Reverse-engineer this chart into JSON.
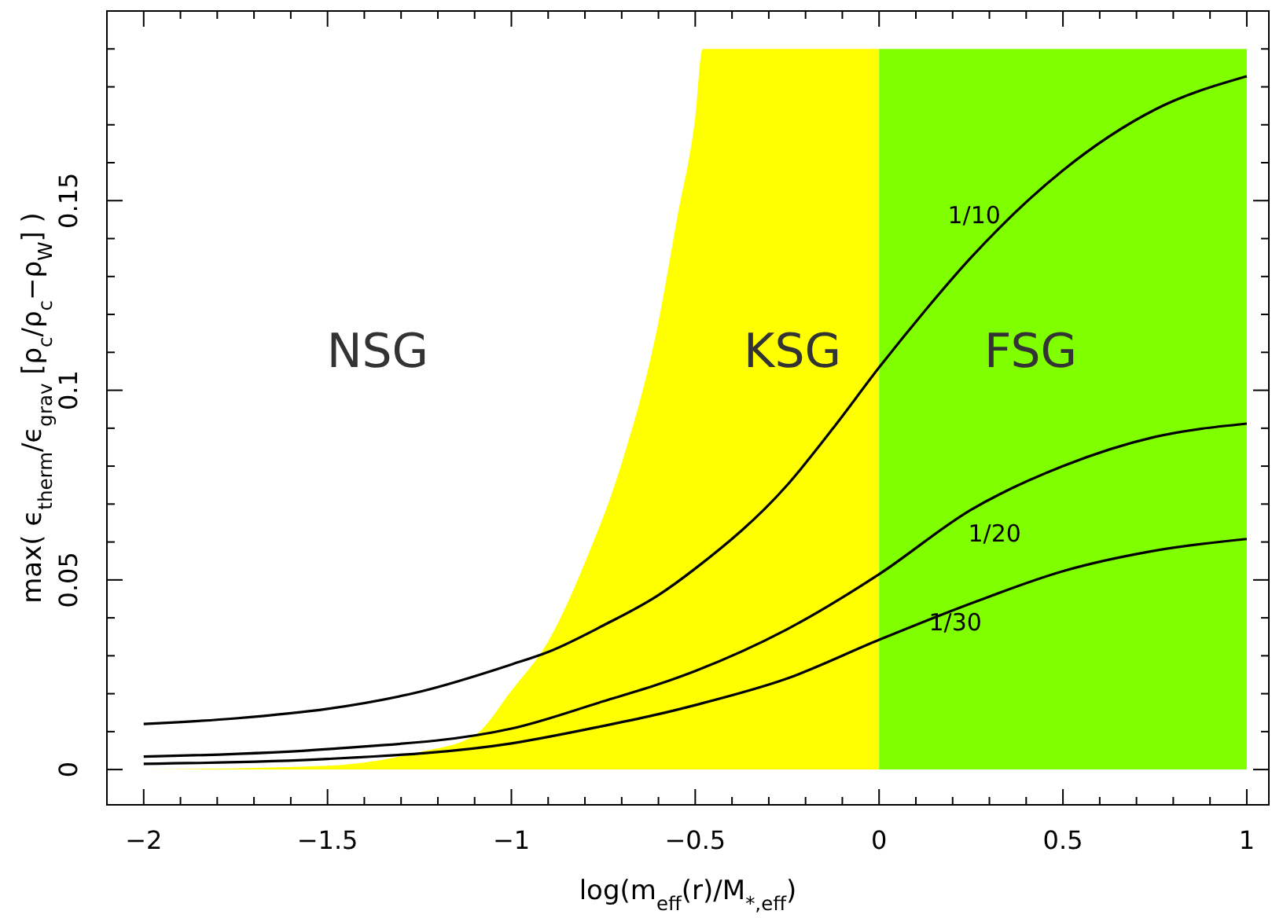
{
  "chart_data": {
    "type": "line",
    "xlabel": "log(m$_{eff}$(r)/M$_{*,eff}$)",
    "ylabel": "max( ϵ$_{therm}$/ϵ$_{grav}$ [ρ$_{c}$/ρ$_{c}$−ρ$_{W}$] )",
    "xlim": [
      -2.1,
      1.06
    ],
    "ylim": [
      -0.0093,
      0.2
    ],
    "xticks": [
      -2,
      {
        "value": -1.9,
        "label": null
      },
      {
        "value": -1.8,
        "label": null
      },
      {
        "value": -1.7,
        "label": null
      },
      {
        "value": -1.6,
        "label": null
      },
      {
        "value": -1.5,
        "label": "−1.5"
      },
      {
        "value": -1.4,
        "label": null
      },
      {
        "value": -1.3,
        "label": null
      },
      {
        "value": -1.2,
        "label": null
      },
      {
        "value": -1.1,
        "label": null
      },
      {
        "value": -1,
        "label": "−1"
      },
      {
        "value": -0.9,
        "label": null
      },
      {
        "value": -0.8,
        "label": null
      },
      {
        "value": -0.7,
        "label": null
      },
      {
        "value": -0.6,
        "label": null
      },
      {
        "value": -0.5,
        "label": "−0.5"
      },
      {
        "value": -0.4,
        "label": null
      },
      {
        "value": -0.3,
        "label": null
      },
      {
        "value": -0.2,
        "label": null
      },
      {
        "value": -0.1,
        "label": null
      },
      0,
      {
        "value": 0.1,
        "label": null
      },
      {
        "value": 0.2,
        "label": null
      },
      {
        "value": 0.3,
        "label": null
      },
      {
        "value": 0.4,
        "label": null
      },
      0.5,
      {
        "value": 0.6,
        "label": null
      },
      {
        "value": 0.7,
        "label": null
      },
      {
        "value": 0.8,
        "label": null
      },
      {
        "value": 0.9,
        "label": null
      },
      1
    ],
    "yticks": [
      0,
      {
        "value": 0.01,
        "label": null
      },
      {
        "value": 0.02,
        "label": null
      },
      {
        "value": 0.03,
        "label": null
      },
      {
        "value": 0.04,
        "label": null
      },
      0.05,
      {
        "value": 0.06,
        "label": null
      },
      {
        "value": 0.07,
        "label": null
      },
      {
        "value": 0.08,
        "label": null
      },
      {
        "value": 0.09,
        "label": null
      },
      0.1,
      {
        "value": 0.11,
        "label": null
      },
      {
        "value": 0.12,
        "label": null
      },
      {
        "value": 0.13,
        "label": null
      },
      {
        "value": 0.14,
        "label": null
      },
      0.15,
      {
        "value": 0.16,
        "label": null
      },
      {
        "value": 0.17,
        "label": null
      },
      {
        "value": 0.18,
        "label": null
      },
      {
        "value": 0.19,
        "label": null
      }
    ],
    "series": [
      {
        "type": "area",
        "color": "#ffff00",
        "x": [
          -2,
          -1.5,
          -1.25,
          -1.1,
          -1,
          -0.9,
          -0.8,
          -0.7,
          -0.6,
          -0.55,
          -0.5,
          -0.48,
          -0.25,
          0
        ],
        "values": [
          0,
          0.001,
          0.0046,
          0.009,
          0.0208,
          0.0338,
          0.0546,
          0.0808,
          0.118,
          0.145,
          0.172,
          0.19,
          0.19,
          0.19
        ]
      },
      {
        "type": "area",
        "color": "#80ff00",
        "x": [
          0,
          0.5,
          1
        ],
        "values": [
          0.19,
          0.19,
          0.19
        ]
      },
      {
        "name": "1/10",
        "color": "#000000",
        "x": [
          -2,
          -1.75,
          -1.5,
          -1.25,
          -1,
          -0.9,
          -0.75,
          -0.6,
          -0.5,
          -0.25,
          -0.125,
          0,
          0.125,
          0.25,
          0.5,
          0.75,
          1
        ],
        "values": [
          0.012,
          0.0135,
          0.016,
          0.0205,
          0.0277,
          0.031,
          0.038,
          0.046,
          0.053,
          0.075,
          0.09,
          0.106,
          0.121,
          0.135,
          0.158,
          0.174,
          0.1828
        ]
      },
      {
        "name": "1/20",
        "color": "#000000",
        "x": [
          -2,
          -1.5,
          -1,
          -0.75,
          -0.6,
          -0.5,
          -0.25,
          0,
          0.25,
          0.5,
          0.75,
          1
        ],
        "values": [
          0.0034,
          0.0054,
          0.0108,
          0.018,
          0.0225,
          0.026,
          0.037,
          0.0515,
          0.0685,
          0.08,
          0.0877,
          0.0912
        ]
      },
      {
        "name": "1/30",
        "color": "#000000",
        "x": [
          -2,
          -1.5,
          -1,
          -0.75,
          -0.6,
          -0.5,
          -0.25,
          0,
          0.25,
          0.5,
          0.75,
          1
        ],
        "values": [
          0.0015,
          0.0028,
          0.0069,
          0.0115,
          0.0146,
          0.017,
          0.024,
          0.0342,
          0.0438,
          0.0523,
          0.0577,
          0.0608
        ]
      }
    ],
    "annotations": [
      "NSG",
      "KSG",
      "FSG"
    ],
    "marker": "none",
    "line_style": "solid",
    "grid": false,
    "legend": false
  }
}
